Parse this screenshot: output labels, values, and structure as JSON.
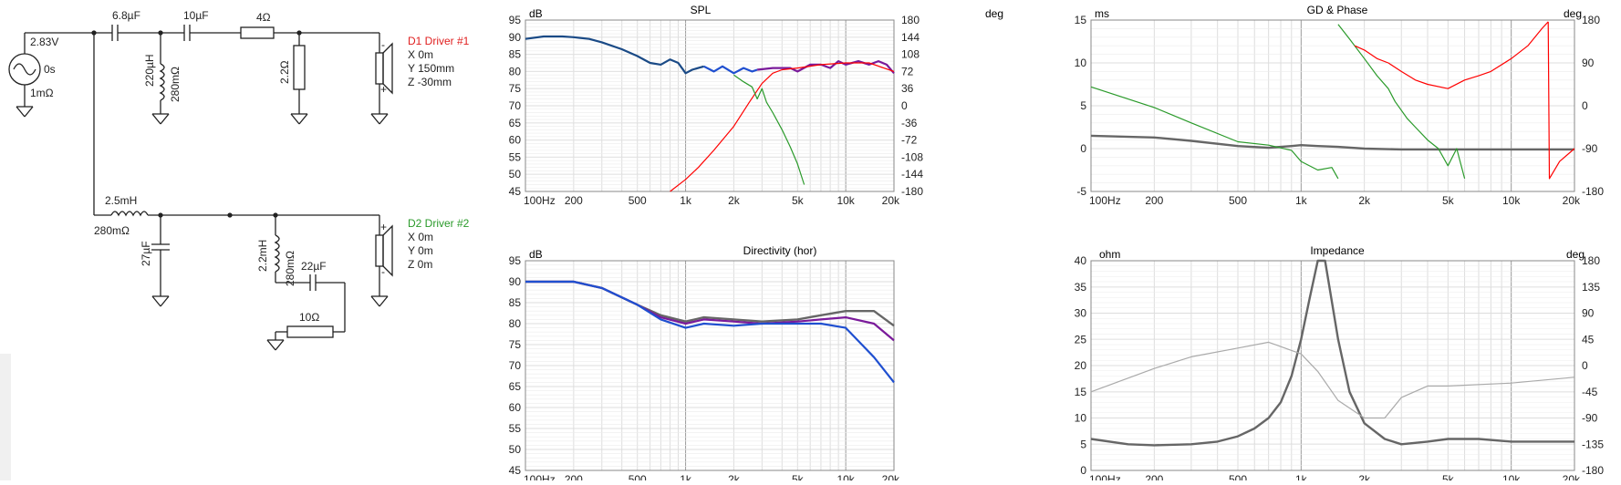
{
  "colors": {
    "red": "#ff0000",
    "green": "#2a9a2a",
    "blue": "#1f4fd0",
    "navy": "#1a4a86",
    "purple": "#7a1a9a",
    "grey": "#666666",
    "lightgrey": "#aaaaaa",
    "grid": "#dddddd",
    "text": "#222222"
  },
  "schematic": {
    "source": {
      "voltage": "2.83V",
      "delay": "0s",
      "resistance": "1mΩ"
    },
    "components": {
      "c1": "6.8µF",
      "c2": "10µF",
      "r1": "4Ω",
      "l1": "220µH",
      "l1_r": "280mΩ",
      "r2": "2.2Ω",
      "l2": "2.5mH",
      "l2_r": "280mΩ",
      "c3": "27µF",
      "l3": "2.2mH",
      "l3_r": "280mΩ",
      "c4": "22µF",
      "r3": "10Ω"
    },
    "driver1": {
      "name": "D1 Driver #1",
      "x": "X 0m",
      "y": "Y 150mm",
      "z": "Z -30mm",
      "plus": "+",
      "minus": "-"
    },
    "driver2": {
      "name": "D2 Driver #2",
      "x": "X 0m",
      "y": "Y 0m",
      "z": "Z 0m",
      "plus": "+",
      "minus": "-"
    }
  },
  "charts": {
    "spl": {
      "title": "SPL",
      "left_unit": "dB",
      "right_unit": "deg",
      "y_ticks": [
        "95",
        "90",
        "85",
        "80",
        "75",
        "70",
        "65",
        "60",
        "55",
        "50",
        "45"
      ],
      "right_ticks": [
        "180",
        "144",
        "108",
        "72",
        "36",
        "0",
        "-36",
        "-72",
        "-108",
        "-144",
        "-180"
      ],
      "x_ticks": [
        "100Hz",
        "200",
        "500",
        "1k",
        "2k",
        "5k",
        "10k",
        "20k"
      ]
    },
    "gd": {
      "title": "GD & Phase",
      "left_unit": "ms",
      "right_unit": "deg",
      "y_ticks": [
        "15",
        "10",
        "5",
        "0",
        "-5"
      ],
      "right_ticks": [
        "180",
        "90",
        "0",
        "-90",
        "-180"
      ],
      "x_ticks": [
        "100Hz",
        "200",
        "500",
        "1k",
        "2k",
        "5k",
        "10k",
        "20k"
      ]
    },
    "directivity": {
      "title": "Directivity (hor)",
      "left_unit": "dB",
      "y_ticks": [
        "95",
        "90",
        "85",
        "80",
        "75",
        "70",
        "65",
        "60",
        "55",
        "50",
        "45"
      ],
      "x_ticks": [
        "100Hz",
        "200",
        "500",
        "1k",
        "2k",
        "5k",
        "10k",
        "20k"
      ]
    },
    "impedance": {
      "title": "Impedance",
      "left_unit": "ohm",
      "right_unit": "deg",
      "y_ticks": [
        "40",
        "35",
        "30",
        "25",
        "20",
        "15",
        "10",
        "5",
        "0"
      ],
      "right_ticks": [
        "180",
        "135",
        "90",
        "45",
        "0",
        "-45",
        "-90",
        "-135",
        "-180"
      ],
      "x_ticks": [
        "100Hz",
        "200",
        "500",
        "1k",
        "2k",
        "5k",
        "10k",
        "20k"
      ]
    }
  },
  "chart_data": [
    {
      "type": "line",
      "title": "SPL",
      "xscale": "log",
      "xlim": [
        100,
        20000
      ],
      "ylim": [
        45,
        95
      ],
      "y2lim": [
        -180,
        180
      ],
      "ylabel": "dB",
      "y2label": "deg",
      "series": [
        {
          "color": "navy",
          "axis": "y",
          "x": [
            100,
            130,
            170,
            200,
            250,
            300,
            400,
            500,
            600,
            700,
            800,
            900,
            1000,
            1100,
            1300
          ],
          "values": [
            89.5,
            90.2,
            90.2,
            90,
            89.5,
            88.5,
            86.5,
            84.5,
            82.5,
            82,
            83.5,
            82.5,
            79.5,
            80.5,
            81.5
          ]
        },
        {
          "color": "blue",
          "axis": "y",
          "x": [
            1300,
            1500,
            1700,
            2000,
            2300,
            2600,
            2800
          ],
          "values": [
            81.5,
            80,
            81.5,
            79.5,
            81,
            80,
            80.5
          ]
        },
        {
          "color": "purple",
          "axis": "y",
          "x": [
            2800,
            3500,
            4500,
            5000,
            6000,
            7000,
            8000,
            9000,
            10000,
            12000,
            14000,
            16000,
            18000,
            20000
          ],
          "values": [
            80.5,
            81,
            81,
            80,
            82,
            82,
            81,
            83,
            82,
            83,
            82,
            83,
            82,
            79.5
          ]
        },
        {
          "color": "red",
          "axis": "y",
          "x": [
            800,
            1000,
            1200,
            1500,
            2000,
            2500,
            3000,
            3500,
            4000,
            5000,
            7000,
            10000,
            14000,
            20000
          ],
          "values": [
            45,
            48.5,
            52,
            57,
            64,
            71,
            76.5,
            79.5,
            80.5,
            81,
            82,
            82.5,
            82.5,
            80
          ]
        },
        {
          "color": "green",
          "axis": "y",
          "x": [
            2000,
            2300,
            2600,
            2800,
            3000,
            3200,
            3500,
            4000,
            4500,
            5000,
            5500
          ],
          "values": [
            79,
            77,
            75.5,
            72,
            75,
            71,
            68,
            63,
            58,
            53,
            47
          ]
        }
      ]
    },
    {
      "type": "line",
      "title": "GD & Phase",
      "xscale": "log",
      "xlim": [
        100,
        20000
      ],
      "ylim": [
        -5,
        15
      ],
      "y2lim": [
        -180,
        180
      ],
      "ylabel": "ms",
      "y2label": "deg",
      "series": [
        {
          "color": "grey",
          "axis": "y",
          "x": [
            100,
            200,
            300,
            500,
            700,
            900,
            1000,
            1200,
            1500,
            2000,
            3000,
            5000,
            10000,
            20000
          ],
          "values": [
            1.5,
            1.3,
            0.9,
            0.3,
            0.1,
            0.3,
            0.4,
            0.3,
            0.2,
            0,
            -0.1,
            -0.1,
            -0.1,
            -0.1
          ]
        },
        {
          "color": "green",
          "axis": "y",
          "x": [
            100,
            200,
            300,
            500,
            700,
            900,
            1000,
            1200,
            1400,
            1500
          ],
          "values": [
            7.2,
            4.8,
            3,
            0.8,
            0.4,
            -0.2,
            -1.5,
            -2.5,
            -2.2,
            -3.5
          ]
        },
        {
          "color": "green",
          "axis": "y",
          "x": [
            1500,
            1700,
            2000,
            2300,
            2600,
            2800,
            3200,
            3500,
            4000,
            4500,
            5000,
            5500,
            6000
          ],
          "values": [
            14.5,
            12.8,
            10.5,
            8.5,
            7,
            5.5,
            3.5,
            2.5,
            1,
            0,
            -2,
            0,
            -3.5
          ]
        },
        {
          "color": "red",
          "axis": "y",
          "x": [
            1800,
            2000,
            2300,
            2600,
            3000,
            3500,
            4000,
            5000,
            6000,
            7000,
            8000,
            10000,
            12000,
            14000,
            15000
          ],
          "values": [
            12,
            11.5,
            10.5,
            10,
            9,
            8,
            7.5,
            7,
            8,
            8.5,
            9,
            10.5,
            12,
            14,
            14.8
          ]
        },
        {
          "color": "red",
          "axis": "y",
          "x": [
            15000,
            15200,
            17000,
            20000
          ],
          "values": [
            14.8,
            -3.5,
            -1.5,
            0
          ]
        }
      ]
    },
    {
      "type": "line",
      "title": "Directivity (hor)",
      "xscale": "log",
      "xlim": [
        100,
        20000
      ],
      "ylim": [
        45,
        95
      ],
      "ylabel": "dB",
      "series": [
        {
          "color": "grey",
          "x": [
            100,
            200,
            300,
            500,
            700,
            1000,
            1300,
            2000,
            3000,
            5000,
            7000,
            10000,
            15000,
            20000
          ],
          "values": [
            90,
            90,
            88.5,
            84.5,
            82,
            80.5,
            81.5,
            81,
            80.5,
            81,
            82,
            83,
            83,
            79.5
          ]
        },
        {
          "color": "purple",
          "x": [
            100,
            200,
            300,
            500,
            700,
            1000,
            1300,
            2000,
            3000,
            5000,
            7000,
            10000,
            15000,
            20000
          ],
          "values": [
            90,
            90,
            88.5,
            84.5,
            81.5,
            80,
            81,
            80.5,
            80,
            80.5,
            81,
            81.5,
            80,
            76
          ]
        },
        {
          "color": "blue",
          "x": [
            100,
            200,
            300,
            500,
            700,
            1000,
            1300,
            2000,
            3000,
            5000,
            7000,
            10000,
            15000,
            20000
          ],
          "values": [
            90,
            90,
            88.5,
            84.5,
            81,
            79,
            80,
            79.5,
            80,
            80,
            80,
            79,
            72,
            66
          ]
        }
      ]
    },
    {
      "type": "line",
      "title": "Impedance",
      "xscale": "log",
      "xlim": [
        100,
        20000
      ],
      "ylim": [
        0,
        40
      ],
      "y2lim": [
        -180,
        180
      ],
      "ylabel": "ohm",
      "y2label": "deg",
      "series": [
        {
          "color": "grey",
          "axis": "y",
          "x": [
            100,
            150,
            200,
            300,
            400,
            500,
            600,
            700,
            800,
            900,
            1000,
            1100,
            1200,
            1300,
            1500,
            1700,
            2000,
            2500,
            3000,
            4000,
            5000,
            7000,
            10000,
            15000,
            20000
          ],
          "values": [
            6,
            5,
            4.8,
            5,
            5.5,
            6.5,
            8,
            10,
            13,
            18,
            25,
            33,
            40,
            40,
            25,
            15,
            9,
            6,
            5,
            5.5,
            6,
            6,
            5.5,
            5.5,
            5.5
          ]
        },
        {
          "color": "lightgrey",
          "axis": "y2",
          "x": [
            100,
            200,
            300,
            500,
            700,
            1000,
            1200,
            1500,
            2000,
            2500,
            3000,
            4000,
            5000,
            10000,
            20000
          ],
          "values": [
            -45,
            -5,
            15,
            30,
            40,
            20,
            -10,
            -60,
            -90,
            -90,
            -55,
            -35,
            -35,
            -30,
            -20
          ]
        }
      ]
    }
  ]
}
